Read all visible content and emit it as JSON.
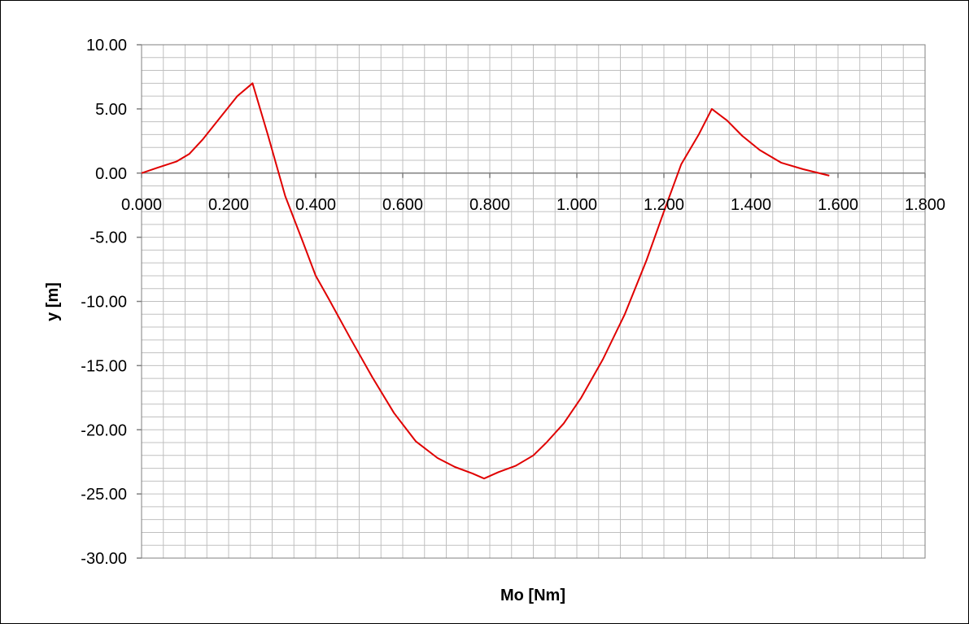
{
  "chart_data": {
    "type": "line",
    "title": "",
    "xlabel": "Mo [Nm]",
    "ylabel": "y [m]",
    "xlim": [
      0,
      1.8
    ],
    "ylim": [
      -30,
      10
    ],
    "x_ticks": [
      "0.000",
      "0.200",
      "0.400",
      "0.600",
      "0.800",
      "1.000",
      "1.200",
      "1.400",
      "1.600",
      "1.800"
    ],
    "y_ticks": [
      "10.00",
      "5.00",
      "0.00",
      "-5.00",
      "-10.00",
      "-15.00",
      "-20.00",
      "-25.00",
      "-30.00"
    ],
    "grid": true,
    "legend": "none",
    "colors": {
      "series": "#e00000",
      "grid": "#c0c0c0",
      "axis": "#808080"
    },
    "series": [
      {
        "x": [
          0.0,
          0.035,
          0.08,
          0.11,
          0.14,
          0.18,
          0.22,
          0.255,
          0.29,
          0.33,
          0.37,
          0.4,
          0.43,
          0.48,
          0.53,
          0.58,
          0.63,
          0.68,
          0.72,
          0.76,
          0.787,
          0.82,
          0.86,
          0.9,
          0.93,
          0.97,
          1.01,
          1.06,
          1.11,
          1.16,
          1.2,
          1.24,
          1.28,
          1.31,
          1.345,
          1.38,
          1.42,
          1.47,
          1.52,
          1.58
        ],
        "y": [
          0.0,
          0.4,
          0.9,
          1.5,
          2.6,
          4.3,
          6.0,
          7.0,
          3.0,
          -1.8,
          -5.3,
          -8.0,
          -9.8,
          -12.9,
          -15.9,
          -18.7,
          -20.9,
          -22.2,
          -22.9,
          -23.4,
          -23.8,
          -23.3,
          -22.8,
          -22.0,
          -21.0,
          -19.5,
          -17.5,
          -14.5,
          -11.0,
          -6.8,
          -3.0,
          0.7,
          3.0,
          5.0,
          4.1,
          2.9,
          1.8,
          0.8,
          0.3,
          -0.2
        ]
      }
    ]
  }
}
